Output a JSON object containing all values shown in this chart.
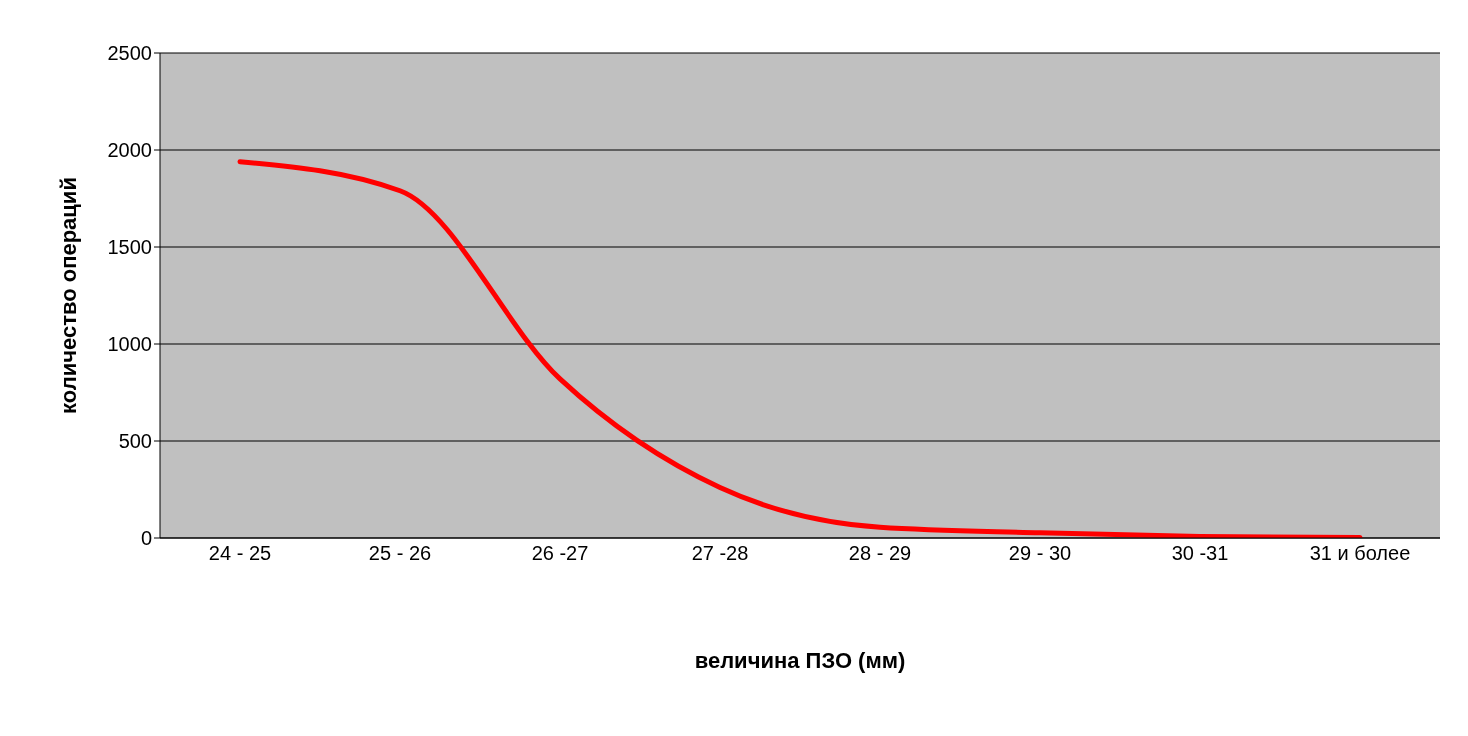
{
  "chart_data": {
    "type": "line",
    "xlabel": "величина ПЗО (мм)",
    "ylabel": "количество операций",
    "categories": [
      "24 - 25",
      "25 - 26",
      "26 -27",
      "27 -28",
      "28 - 29",
      "29 - 30",
      "30 -31",
      "31 и более"
    ],
    "series": [
      {
        "color": "#ff0000",
        "values": [
          1940,
          1790,
          820,
          260,
          55,
          27,
          8,
          2
        ]
      }
    ],
    "ylim": [
      0,
      2500
    ],
    "yticks": [
      0,
      500,
      1000,
      1500,
      2000,
      2500
    ],
    "grid": "y",
    "legend": false,
    "marker": "none",
    "line_style": "solid"
  }
}
